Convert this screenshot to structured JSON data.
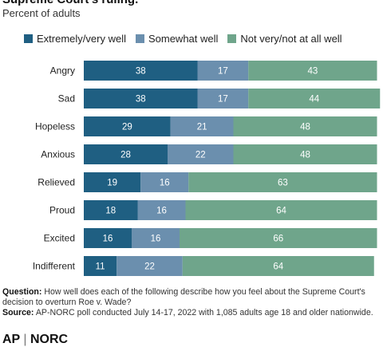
{
  "header": {
    "title": "Supreme Court's ruling.",
    "subtitle": "Percent of adults"
  },
  "legend": [
    {
      "label": "Extremely/very well",
      "color": "#1f5f82"
    },
    {
      "label": "Somewhat well",
      "color": "#6b8fae"
    },
    {
      "label": "Not very/not at all well",
      "color": "#6fa58b"
    }
  ],
  "chart_data": {
    "type": "bar",
    "orientation": "horizontal",
    "stacked": true,
    "categories": [
      "Angry",
      "Sad",
      "Hopeless",
      "Anxious",
      "Relieved",
      "Proud",
      "Excited",
      "Indifferent"
    ],
    "series": [
      {
        "name": "Extremely/very well",
        "color": "#1f5f82",
        "values": [
          38,
          38,
          29,
          28,
          19,
          18,
          16,
          11
        ]
      },
      {
        "name": "Somewhat well",
        "color": "#6b8fae",
        "values": [
          17,
          17,
          21,
          22,
          16,
          16,
          16,
          22
        ]
      },
      {
        "name": "Not very/not at all well",
        "color": "#6fa58b",
        "values": [
          43,
          44,
          48,
          48,
          63,
          64,
          66,
          64
        ]
      }
    ],
    "xlim": [
      0,
      100
    ],
    "grid": false,
    "legend_position": "top"
  },
  "notes": {
    "question_label": "Question:",
    "question_text": "How well does each of the following describe how you feel about the Supreme Court's decision to overturn Roe v. Wade?",
    "source_label": "Source:",
    "source_text": "AP-NORC poll conducted July 14-17, 2022 with 1,085 adults age 18 and older nationwide."
  },
  "footer": {
    "logo_left": "AP",
    "logo_sep": "|",
    "logo_right": "NORC"
  }
}
